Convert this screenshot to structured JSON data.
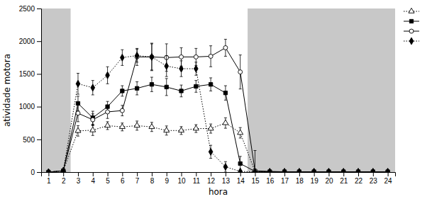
{
  "chart_data": {
    "type": "line",
    "xlabel": "hora",
    "ylabel": "atividade motora",
    "x": [
      1,
      2,
      3,
      4,
      5,
      6,
      7,
      8,
      9,
      10,
      11,
      12,
      13,
      14,
      15,
      16,
      17,
      18,
      19,
      20,
      21,
      22,
      23,
      24
    ],
    "xlim": [
      0.5,
      24.5
    ],
    "ylim": [
      0,
      2500
    ],
    "xticks": [
      1,
      2,
      3,
      4,
      5,
      6,
      7,
      8,
      9,
      10,
      11,
      12,
      13,
      14,
      15,
      16,
      17,
      18,
      19,
      20,
      21,
      22,
      23,
      24
    ],
    "yticks": [
      0,
      500,
      1000,
      1500,
      2000,
      2500
    ],
    "grid": false,
    "legend": "right",
    "shaded_regions": [
      {
        "x": [
          0.5,
          2.5
        ],
        "color": "#c8c8c8"
      },
      {
        "x": [
          14.5,
          24.5
        ],
        "color": "#c8c8c8"
      }
    ],
    "series": [
      {
        "color": "#000000",
        "marker": "triangle-open",
        "line_style": "dotted",
        "values": [
          0,
          20,
          630,
          640,
          710,
          690,
          710,
          690,
          635,
          635,
          665,
          665,
          750,
          600,
          10,
          5,
          5,
          5,
          5,
          5,
          5,
          5,
          5,
          5
        ],
        "errors": [
          0,
          0,
          80,
          80,
          60,
          60,
          70,
          70,
          70,
          60,
          60,
          70,
          80,
          80,
          0,
          0,
          0,
          0,
          0,
          0,
          0,
          0,
          0,
          0
        ]
      },
      {
        "color": "#000000",
        "marker": "square",
        "line_style": "solid",
        "values": [
          0,
          20,
          1050,
          830,
          1000,
          1240,
          1280,
          1340,
          1300,
          1240,
          1310,
          1340,
          1210,
          130,
          10,
          5,
          5,
          5,
          5,
          5,
          5,
          5,
          5,
          5
        ],
        "errors": [
          0,
          0,
          110,
          100,
          80,
          80,
          100,
          110,
          130,
          90,
          90,
          100,
          110,
          110,
          0,
          0,
          0,
          0,
          0,
          0,
          0,
          0,
          0,
          0
        ]
      },
      {
        "color": "#000000",
        "marker": "circle-open",
        "line_style": "solid",
        "values": [
          0,
          20,
          900,
          800,
          920,
          940,
          1760,
          1760,
          1750,
          1760,
          1760,
          1770,
          1900,
          1530,
          20,
          10,
          5,
          5,
          5,
          5,
          5,
          5,
          5,
          5
        ],
        "errors": [
          0,
          0,
          130,
          90,
          100,
          80,
          130,
          210,
          210,
          140,
          130,
          160,
          130,
          260,
          310,
          0,
          0,
          0,
          0,
          0,
          0,
          0,
          0,
          0
        ]
      },
      {
        "color": "#000000",
        "marker": "diamond",
        "line_style": "dotted",
        "values": [
          0,
          20,
          1350,
          1290,
          1480,
          1750,
          1780,
          1760,
          1620,
          1580,
          1580,
          310,
          80,
          10,
          5,
          5,
          5,
          5,
          5,
          5,
          5,
          5,
          5,
          5
        ],
        "errors": [
          0,
          0,
          160,
          110,
          130,
          120,
          100,
          200,
          160,
          120,
          100,
          100,
          80,
          0,
          0,
          0,
          0,
          0,
          0,
          0,
          0,
          0,
          0,
          0
        ]
      }
    ]
  }
}
